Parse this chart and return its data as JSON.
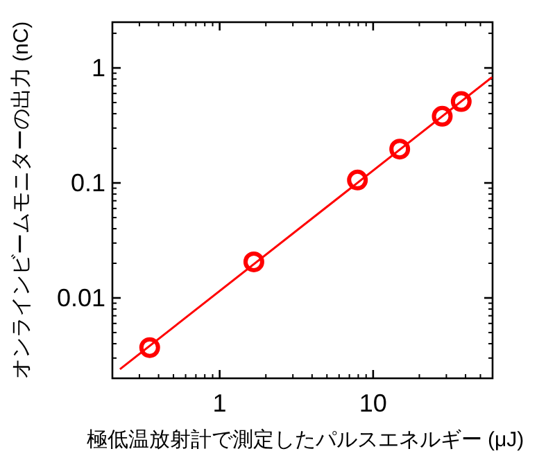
{
  "chart_data": {
    "type": "scatter",
    "xlabel": "極低温放射計で測定したパルスエネルギー (μJ)",
    "ylabel": "オンラインビームモニターの出力 (nC)",
    "log": "xy",
    "xlim": [
      0.2,
      60
    ],
    "ylim": [
      0.002,
      2.5
    ],
    "xticks": [
      1,
      10
    ],
    "yticks": [
      0.01,
      0.1,
      1
    ],
    "marker": "circle",
    "series": [
      {
        "type": "scatter",
        "color": "#ff0000",
        "x": [
          0.35,
          1.67,
          7.9,
          14.9,
          28.2,
          37.5
        ],
        "values": [
          0.0037,
          0.0206,
          0.106,
          0.197,
          0.38,
          0.51
        ]
      },
      {
        "type": "line",
        "color": "#ff0000",
        "marker": "none",
        "x": [
          0.224,
          59.5
        ],
        "values": [
          0.0024,
          0.83
        ]
      }
    ]
  }
}
